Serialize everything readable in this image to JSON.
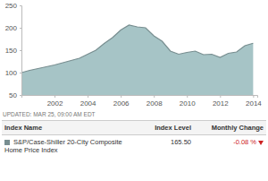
{
  "chart_data": {
    "type": "area",
    "x": [
      2000,
      2000.5,
      2001,
      2001.5,
      2002,
      2002.5,
      2003,
      2003.5,
      2004,
      2004.5,
      2005,
      2005.5,
      2006,
      2006.5,
      2007,
      2007.5,
      2008,
      2008.5,
      2009,
      2009.5,
      2010,
      2010.5,
      2011,
      2011.5,
      2012,
      2012.5,
      2013,
      2013.5,
      2014
    ],
    "series": [
      {
        "color": "#a6c4c6",
        "values": [
          100,
          105,
          109,
          113,
          117,
          122,
          127,
          132,
          141,
          150,
          165,
          178,
          195,
          206,
          202,
          200,
          182,
          170,
          148,
          141,
          145,
          148,
          140,
          141,
          134,
          143,
          146,
          160,
          165.5
        ]
      }
    ],
    "xlim": [
      2000,
      2014.25
    ],
    "xticks": [
      2002,
      2004,
      2006,
      2008,
      2010,
      2012,
      2014
    ],
    "ylim": [
      50,
      250
    ],
    "yticks": [
      50,
      100,
      150,
      200,
      250
    ],
    "grid": false
  },
  "updated": "UPDATED: MAR 25, 09:00 AM EDT",
  "table": {
    "headers": [
      "Index Name",
      "Index Level",
      "Monthly Change"
    ],
    "rows": [
      [
        "S&P/Case-Shiller 20-City Composite Home Price Index",
        "165.50",
        "-0.08 %"
      ]
    ]
  }
}
